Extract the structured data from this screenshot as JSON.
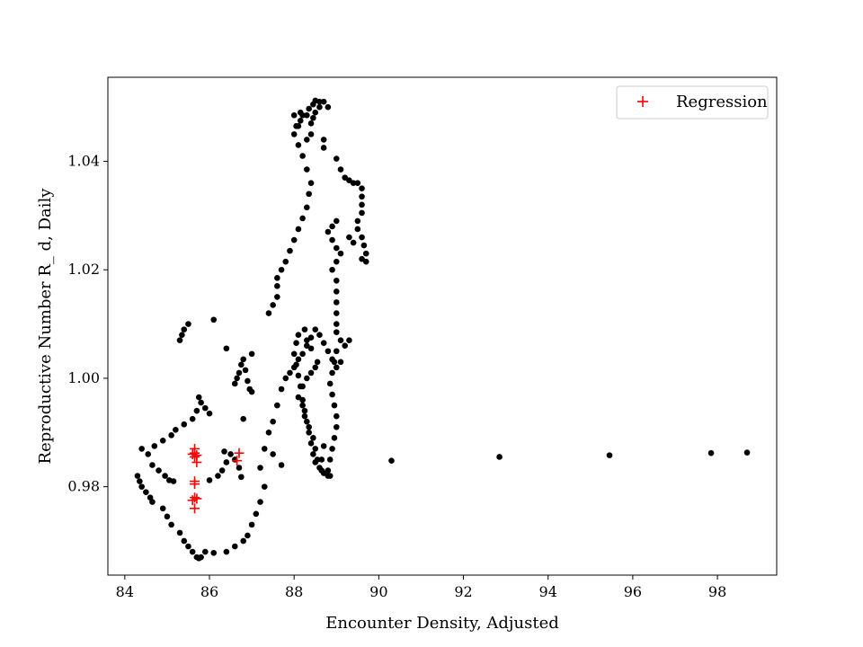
{
  "chart_data": {
    "type": "scatter",
    "xlabel": "Encounter Density, Adjusted",
    "ylabel": "Reproductive Number R_ d, Daily",
    "xlim": [
      83.6,
      99.4
    ],
    "ylim": [
      0.9637,
      1.0555
    ],
    "xticks": [
      84,
      86,
      88,
      90,
      92,
      94,
      96,
      98
    ],
    "yticks": [
      0.98,
      1.0,
      1.02,
      1.04
    ],
    "xtick_labels": [
      "84",
      "86",
      "88",
      "90",
      "92",
      "94",
      "96",
      "98"
    ],
    "ytick_labels": [
      "0.98",
      "1.00",
      "1.02",
      "1.04"
    ],
    "grid": false,
    "legend": {
      "placement": "top-right",
      "entries": [
        "Regression"
      ]
    },
    "series": [
      {
        "marker": "circle",
        "color": "#000000",
        "points": [
          [
            84.3,
            0.982
          ],
          [
            84.35,
            0.981
          ],
          [
            84.4,
            0.98
          ],
          [
            84.5,
            0.979
          ],
          [
            84.6,
            0.978
          ],
          [
            84.65,
            0.9772
          ],
          [
            84.9,
            0.976
          ],
          [
            85.0,
            0.9745
          ],
          [
            85.1,
            0.973
          ],
          [
            85.3,
            0.9715
          ],
          [
            85.4,
            0.97
          ],
          [
            85.5,
            0.969
          ],
          [
            85.6,
            0.968
          ],
          [
            85.7,
            0.967
          ],
          [
            85.75,
            0.9668
          ],
          [
            85.8,
            0.967
          ],
          [
            85.9,
            0.968
          ],
          [
            86.1,
            0.9678
          ],
          [
            86.4,
            0.968
          ],
          [
            86.6,
            0.969
          ],
          [
            86.8,
            0.97
          ],
          [
            86.9,
            0.971
          ],
          [
            87.0,
            0.973
          ],
          [
            87.1,
            0.975
          ],
          [
            87.2,
            0.9772
          ],
          [
            87.3,
            0.98
          ],
          [
            87.2,
            0.9835
          ],
          [
            87.3,
            0.987
          ],
          [
            87.4,
            0.99
          ],
          [
            87.5,
            0.992
          ],
          [
            87.6,
            0.995
          ],
          [
            87.7,
            0.998
          ],
          [
            87.8,
            1.0
          ],
          [
            87.9,
            1.001
          ],
          [
            88.0,
            1.002
          ],
          [
            88.1,
            1.0035
          ],
          [
            88.2,
            1.0045
          ],
          [
            88.3,
            1.006
          ],
          [
            88.4,
            1.0075
          ],
          [
            88.5,
            1.009
          ],
          [
            88.6,
            1.008
          ],
          [
            88.7,
            1.0065
          ],
          [
            88.8,
            1.005
          ],
          [
            88.9,
            1.0035
          ],
          [
            89.0,
            1.002
          ],
          [
            89.1,
            1.003
          ],
          [
            89.2,
            1.006
          ],
          [
            89.3,
            1.007
          ],
          [
            84.4,
            0.987
          ],
          [
            84.55,
            0.986
          ],
          [
            84.65,
            0.984
          ],
          [
            84.8,
            0.983
          ],
          [
            84.95,
            0.982
          ],
          [
            85.05,
            0.9812
          ],
          [
            85.15,
            0.981
          ],
          [
            84.7,
            0.9875
          ],
          [
            84.9,
            0.9885
          ],
          [
            85.1,
            0.9895
          ],
          [
            85.2,
            0.9905
          ],
          [
            85.4,
            0.9915
          ],
          [
            85.6,
            0.9925
          ],
          [
            85.7,
            0.994
          ],
          [
            85.8,
            0.9955
          ],
          [
            85.9,
            0.9945
          ],
          [
            86.0,
            0.9935
          ],
          [
            85.75,
            0.9965
          ],
          [
            86.0,
            0.9812
          ],
          [
            86.2,
            0.982
          ],
          [
            86.3,
            0.983
          ],
          [
            86.4,
            0.9845
          ],
          [
            86.5,
            0.986
          ],
          [
            86.35,
            0.9865
          ],
          [
            86.6,
            0.985
          ],
          [
            86.7,
            0.9835
          ],
          [
            86.75,
            0.9818
          ],
          [
            86.6,
            0.999
          ],
          [
            86.65,
            1.0
          ],
          [
            86.7,
            1.001
          ],
          [
            86.75,
            1.0025
          ],
          [
            86.8,
            1.0035
          ],
          [
            86.85,
            1.0015
          ],
          [
            86.9,
            0.9995
          ],
          [
            86.95,
            0.998
          ],
          [
            87.0,
            0.9975
          ],
          [
            86.8,
            0.9925
          ],
          [
            86.4,
            1.0055
          ],
          [
            86.1,
            1.0108
          ],
          [
            87.0,
            1.0045
          ],
          [
            85.3,
            1.007
          ],
          [
            85.35,
            1.008
          ],
          [
            85.4,
            1.009
          ],
          [
            85.5,
            1.01
          ],
          [
            87.4,
            1.012
          ],
          [
            87.5,
            1.0135
          ],
          [
            87.6,
            1.015
          ],
          [
            87.6,
            1.017
          ],
          [
            87.6,
            1.0185
          ],
          [
            87.7,
            1.02
          ],
          [
            87.8,
            1.0215
          ],
          [
            87.9,
            1.0235
          ],
          [
            88.0,
            1.0255
          ],
          [
            88.1,
            1.0275
          ],
          [
            88.2,
            1.0295
          ],
          [
            88.3,
            1.0315
          ],
          [
            88.35,
            1.034
          ],
          [
            88.4,
            1.036
          ],
          [
            88.3,
            1.0385
          ],
          [
            88.2,
            1.041
          ],
          [
            88.1,
            1.043
          ],
          [
            88.0,
            1.045
          ],
          [
            88.05,
            1.0465
          ],
          [
            88.0,
            1.0485
          ],
          [
            88.15,
            1.049
          ],
          [
            88.3,
            1.0485
          ],
          [
            88.4,
            1.047
          ],
          [
            88.45,
            1.048
          ],
          [
            88.5,
            1.049
          ],
          [
            88.6,
            1.05
          ],
          [
            88.7,
            1.051
          ],
          [
            88.8,
            1.05
          ],
          [
            88.6,
            1.051
          ],
          [
            88.5,
            1.0512
          ],
          [
            88.45,
            1.0505
          ],
          [
            88.35,
            1.0497
          ],
          [
            88.2,
            1.0485
          ],
          [
            88.15,
            1.0475
          ],
          [
            88.1,
            1.0465
          ],
          [
            88.4,
            1.045
          ],
          [
            88.3,
            1.044
          ],
          [
            88.7,
            1.044
          ],
          [
            88.7,
            1.0425
          ],
          [
            89.0,
            1.0405
          ],
          [
            89.1,
            1.0385
          ],
          [
            89.2,
            1.037
          ],
          [
            89.3,
            1.0365
          ],
          [
            89.4,
            1.036
          ],
          [
            89.5,
            1.036
          ],
          [
            89.6,
            1.035
          ],
          [
            89.6,
            1.0335
          ],
          [
            89.6,
            1.032
          ],
          [
            89.6,
            1.0305
          ],
          [
            89.5,
            1.029
          ],
          [
            89.5,
            1.0275
          ],
          [
            89.6,
            1.026
          ],
          [
            89.65,
            1.0245
          ],
          [
            89.7,
            1.023
          ],
          [
            89.7,
            1.0215
          ],
          [
            89.6,
            1.022
          ],
          [
            89.4,
            1.025
          ],
          [
            89.3,
            1.026
          ],
          [
            89.0,
            1.029
          ],
          [
            88.9,
            1.028
          ],
          [
            88.8,
            1.027
          ],
          [
            88.9,
            1.0255
          ],
          [
            89.0,
            1.024
          ],
          [
            89.1,
            1.023
          ],
          [
            89.0,
            1.0215
          ],
          [
            88.9,
            1.02
          ],
          [
            89.0,
            1.018
          ],
          [
            89.0,
            1.016
          ],
          [
            89.0,
            1.014
          ],
          [
            89.0,
            1.012
          ],
          [
            89.0,
            1.01
          ],
          [
            89.0,
            1.0085
          ],
          [
            89.1,
            1.007
          ],
          [
            89.0,
            1.005
          ],
          [
            88.95,
            1.003
          ],
          [
            88.9,
            1.001
          ],
          [
            88.85,
            0.999
          ],
          [
            88.9,
            0.997
          ],
          [
            88.95,
            0.995
          ],
          [
            89.0,
            0.993
          ],
          [
            89.0,
            0.991
          ],
          [
            88.95,
            0.989
          ],
          [
            88.9,
            0.987
          ],
          [
            88.85,
            0.985
          ],
          [
            88.8,
            0.983
          ],
          [
            88.85,
            0.982
          ],
          [
            88.65,
            0.983
          ],
          [
            88.55,
            0.985
          ],
          [
            88.5,
            0.987
          ],
          [
            88.45,
            0.989
          ],
          [
            88.35,
            0.991
          ],
          [
            88.25,
            0.993
          ],
          [
            88.2,
            0.995
          ],
          [
            88.1,
            0.9965
          ],
          [
            88.2,
            0.9985
          ],
          [
            88.3,
            1.0
          ],
          [
            88.4,
            1.001
          ],
          [
            88.5,
            1.002
          ],
          [
            88.55,
            1.003
          ],
          [
            88.4,
            1.0055
          ],
          [
            88.3,
            1.007
          ],
          [
            88.25,
            1.009
          ],
          [
            88.1,
            1.008
          ],
          [
            88.05,
            1.0065
          ],
          [
            88.0,
            1.0045
          ],
          [
            88.05,
            1.0025
          ],
          [
            88.1,
            1.0005
          ],
          [
            88.15,
            0.9985
          ],
          [
            88.2,
            0.996
          ],
          [
            88.25,
            0.994
          ],
          [
            88.3,
            0.992
          ],
          [
            88.35,
            0.99
          ],
          [
            88.4,
            0.988
          ],
          [
            88.45,
            0.986
          ],
          [
            88.5,
            0.9845
          ],
          [
            88.6,
            0.9835
          ],
          [
            88.7,
            0.9825
          ],
          [
            88.8,
            0.982
          ],
          [
            88.7,
            0.9875
          ],
          [
            88.65,
            0.985
          ],
          [
            87.5,
            0.986
          ],
          [
            87.7,
            0.984
          ],
          [
            90.3,
            0.9848
          ],
          [
            92.85,
            0.9855
          ],
          [
            95.45,
            0.9858
          ],
          [
            97.85,
            0.9862
          ],
          [
            98.7,
            0.9863
          ]
        ]
      },
      {
        "name": "Regression",
        "marker": "plus",
        "color": "#ff0000",
        "points": [
          [
            85.65,
            0.987
          ],
          [
            85.65,
            0.9862
          ],
          [
            85.65,
            0.9855
          ],
          [
            85.7,
            0.9845
          ],
          [
            85.6,
            0.986
          ],
          [
            85.7,
            0.9858
          ],
          [
            85.65,
            0.981
          ],
          [
            85.65,
            0.9805
          ],
          [
            85.65,
            0.978
          ],
          [
            85.7,
            0.9778
          ],
          [
            85.6,
            0.9775
          ],
          [
            85.65,
            0.976
          ],
          [
            86.7,
            0.9862
          ],
          [
            86.65,
            0.9848
          ]
        ]
      }
    ]
  }
}
